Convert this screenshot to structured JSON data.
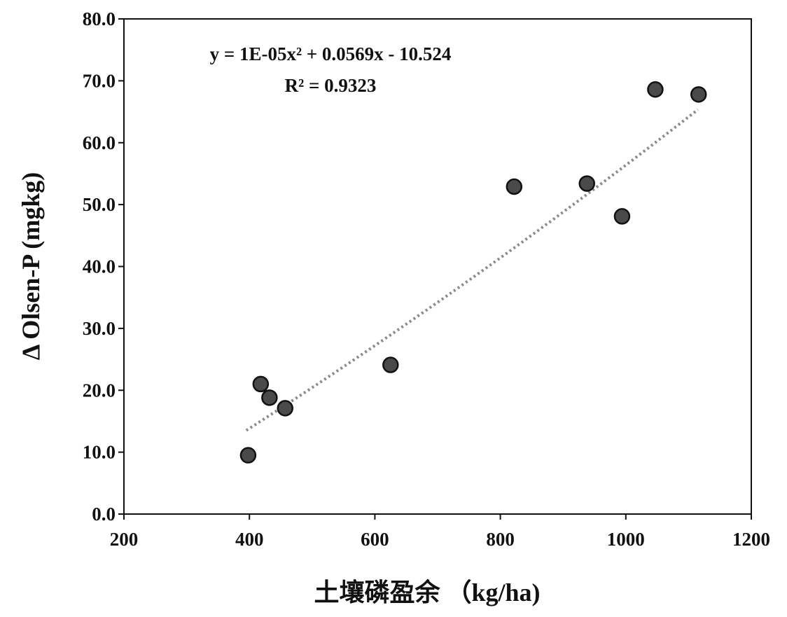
{
  "chart_data": {
    "type": "scatter",
    "title": "",
    "xlabel": "土壤磷盈余 （kg/ha)",
    "ylabel": "Δ Olsen-P (mgkg)",
    "xlim": [
      200,
      1200
    ],
    "ylim": [
      0,
      80
    ],
    "xticks": [
      200,
      400,
      600,
      800,
      1000,
      1200
    ],
    "xtick_labels": [
      "200",
      "400",
      "600",
      "800",
      "1000",
      "1200"
    ],
    "yticks": [
      0,
      10,
      20,
      30,
      40,
      50,
      60,
      70,
      80
    ],
    "ytick_labels": [
      "0.0",
      "10.0",
      "20.0",
      "30.0",
      "40.0",
      "50.0",
      "60.0",
      "70.0",
      "80.0"
    ],
    "grid": false,
    "points": [
      {
        "x": 398,
        "y": 9.5
      },
      {
        "x": 418,
        "y": 21.0
      },
      {
        "x": 432,
        "y": 18.8
      },
      {
        "x": 457,
        "y": 17.1
      },
      {
        "x": 625,
        "y": 24.1
      },
      {
        "x": 822,
        "y": 52.9
      },
      {
        "x": 938,
        "y": 53.4
      },
      {
        "x": 994,
        "y": 48.1
      },
      {
        "x": 1047,
        "y": 68.6
      },
      {
        "x": 1116,
        "y": 67.8
      }
    ],
    "trendline": {
      "type": "polynomial-2",
      "coefficients": [
        1e-05,
        0.0569,
        -10.524
      ],
      "x_range": [
        395,
        1117
      ],
      "equation": "y = 1E-05x² + 0.0569x - 10.524",
      "r_squared_label": "R² = 0.9323"
    },
    "colors": {
      "marker": "#4a4a4a",
      "marker_edge": "#111111",
      "trendline": "#8c8c8c",
      "axis": "#111111"
    }
  }
}
